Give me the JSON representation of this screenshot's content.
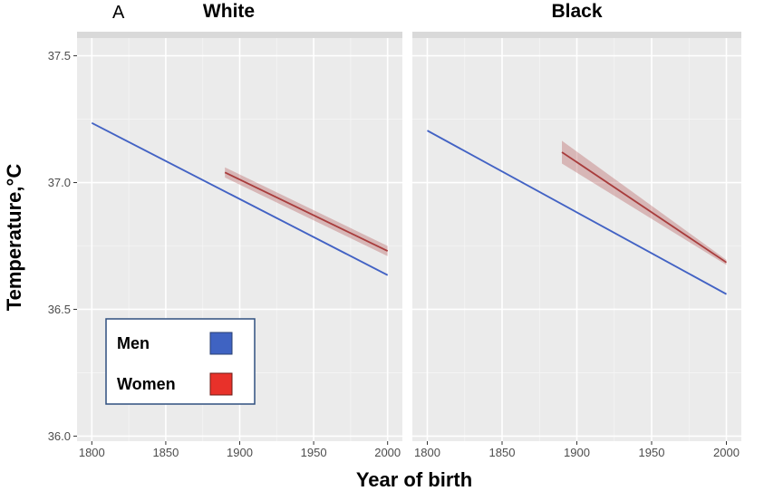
{
  "chart_data": {
    "type": "line",
    "panel_label": "A",
    "xlabel": "Year of birth",
    "ylabel": "Temperature,°C",
    "xlim": [
      1790,
      2010
    ],
    "ylim": [
      35.98,
      37.57
    ],
    "x_ticks": [
      1800,
      1850,
      1900,
      1950,
      2000
    ],
    "x_tick_labels": [
      "1800",
      "1850",
      "1900",
      "1950",
      "2000"
    ],
    "y_ticks": [
      36.0,
      36.5,
      37.0,
      37.5
    ],
    "y_tick_labels": [
      "36.0",
      "36.5",
      "37.0",
      "37.5"
    ],
    "grid": true,
    "legend": {
      "position": "bottom-left",
      "entries": [
        {
          "label": "Men",
          "color": "#3f63c2"
        },
        {
          "label": "Women",
          "color": "#e8312a"
        }
      ]
    },
    "facets": [
      {
        "title": "White",
        "series": [
          {
            "name": "Men",
            "color": "#4262c4",
            "x": [
              1800,
              2000
            ],
            "y": [
              37.235,
              36.635
            ],
            "ci": 0.004
          },
          {
            "name": "Women",
            "color": "#a83c3c",
            "x": [
              1890,
              2000
            ],
            "y": [
              37.04,
              36.73
            ],
            "ci": 0.02
          }
        ]
      },
      {
        "title": "Black",
        "series": [
          {
            "name": "Men",
            "color": "#4262c4",
            "x": [
              1800,
              2000
            ],
            "y": [
              37.205,
              36.56
            ],
            "ci": 0.004
          },
          {
            "name": "Women",
            "color": "#a83c3c",
            "x": [
              1890,
              2000
            ],
            "y": [
              37.12,
              36.685
            ],
            "ci_start": 0.045,
            "ci_end": 0.01
          }
        ]
      }
    ]
  }
}
